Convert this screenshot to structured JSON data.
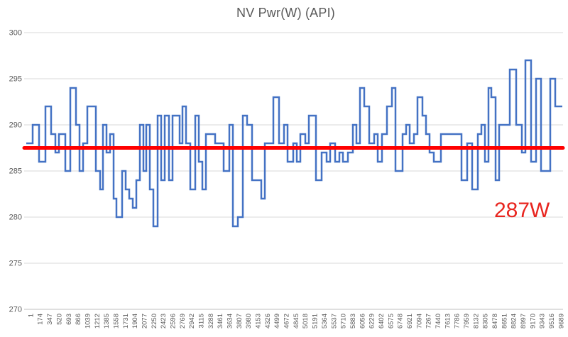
{
  "title": "NV Pwr(W) (API)",
  "annotation": {
    "label": "287W",
    "color": "#E8251F"
  },
  "colors": {
    "series_blue": "#4472C4",
    "average_red": "#FF0000",
    "grid": "#D9D9D9",
    "axis": "#BFBFBF",
    "text": "#595959"
  },
  "chart_data": {
    "type": "line",
    "title": "NV Pwr(W) (API)",
    "xlabel": "",
    "ylabel": "",
    "ylim": [
      270,
      300
    ],
    "y_ticks": [
      300,
      295,
      290,
      285,
      280,
      275,
      270
    ],
    "grid": "horizontal",
    "legend": "none",
    "x_tick_labels": [
      "1",
      "174",
      "347",
      "520",
      "693",
      "866",
      "1039",
      "1212",
      "1385",
      "1558",
      "1731",
      "1904",
      "2077",
      "2250",
      "2423",
      "2596",
      "2769",
      "2942",
      "3115",
      "3288",
      "3461",
      "3634",
      "3807",
      "3980",
      "4153",
      "4326",
      "4499",
      "4672",
      "4845",
      "5018",
      "5191",
      "5364",
      "5537",
      "5710",
      "5883",
      "6056",
      "6229",
      "6402",
      "6575",
      "6748",
      "6921",
      "7094",
      "7267",
      "7440",
      "7613",
      "7786",
      "7959",
      "8132",
      "8305",
      "8478",
      "8651",
      "8824",
      "8997",
      "9170",
      "9343",
      "9516",
      "9689"
    ],
    "series": [
      {
        "name": "NV Pwr(W) (API)",
        "color": "#4472C4",
        "style": "step",
        "note": "segments are [watts, relative_duration] pairs, values estimated from gridlines",
        "segments": [
          [
            288,
            9
          ],
          [
            290,
            9
          ],
          [
            286,
            9
          ],
          [
            292,
            8
          ],
          [
            289,
            6
          ],
          [
            287,
            5
          ],
          [
            289,
            9
          ],
          [
            285,
            7
          ],
          [
            294,
            8
          ],
          [
            290,
            5
          ],
          [
            285,
            5
          ],
          [
            288,
            6
          ],
          [
            292,
            12
          ],
          [
            285,
            6
          ],
          [
            283,
            4
          ],
          [
            290,
            5
          ],
          [
            287,
            5
          ],
          [
            289,
            5
          ],
          [
            282,
            4
          ],
          [
            280,
            8
          ],
          [
            285,
            5
          ],
          [
            283,
            5
          ],
          [
            282,
            5
          ],
          [
            281,
            5
          ],
          [
            284,
            5
          ],
          [
            290,
            5
          ],
          [
            285,
            4
          ],
          [
            290,
            5
          ],
          [
            283,
            5
          ],
          [
            279,
            6
          ],
          [
            291,
            5
          ],
          [
            284,
            5
          ],
          [
            291,
            6
          ],
          [
            284,
            5
          ],
          [
            291,
            10
          ],
          [
            288,
            4
          ],
          [
            292,
            5
          ],
          [
            288,
            6
          ],
          [
            283,
            7
          ],
          [
            291,
            5
          ],
          [
            286,
            5
          ],
          [
            283,
            5
          ],
          [
            289,
            13
          ],
          [
            288,
            12
          ],
          [
            285,
            8
          ],
          [
            290,
            5
          ],
          [
            279,
            7
          ],
          [
            280,
            7
          ],
          [
            291,
            6
          ],
          [
            290,
            7
          ],
          [
            284,
            13
          ],
          [
            282,
            5
          ],
          [
            288,
            12
          ],
          [
            293,
            8
          ],
          [
            288,
            7
          ],
          [
            290,
            5
          ],
          [
            286,
            8
          ],
          [
            288,
            5
          ],
          [
            286,
            5
          ],
          [
            289,
            7
          ],
          [
            288,
            5
          ],
          [
            291,
            10
          ],
          [
            284,
            8
          ],
          [
            287,
            7
          ],
          [
            286,
            5
          ],
          [
            288,
            7
          ],
          [
            286,
            6
          ],
          [
            287,
            5
          ],
          [
            286,
            7
          ],
          [
            287,
            7
          ],
          [
            290,
            5
          ],
          [
            288,
            5
          ],
          [
            294,
            6
          ],
          [
            292,
            7
          ],
          [
            288,
            7
          ],
          [
            289,
            5
          ],
          [
            286,
            6
          ],
          [
            289,
            7
          ],
          [
            292,
            7
          ],
          [
            294,
            5
          ],
          [
            285,
            10
          ],
          [
            289,
            5
          ],
          [
            290,
            5
          ],
          [
            288,
            6
          ],
          [
            289,
            5
          ],
          [
            293,
            7
          ],
          [
            291,
            5
          ],
          [
            289,
            5
          ],
          [
            287,
            6
          ],
          [
            286,
            10
          ],
          [
            289,
            29
          ],
          [
            284,
            8
          ],
          [
            288,
            7
          ],
          [
            283,
            8
          ],
          [
            289,
            5
          ],
          [
            290,
            5
          ],
          [
            286,
            5
          ],
          [
            294,
            4
          ],
          [
            293,
            6
          ],
          [
            284,
            5
          ],
          [
            290,
            15
          ],
          [
            296,
            9
          ],
          [
            290,
            8
          ],
          [
            287,
            5
          ],
          [
            297,
            8
          ],
          [
            286,
            7
          ],
          [
            295,
            7
          ],
          [
            285,
            13
          ],
          [
            295,
            7
          ],
          [
            292,
            10
          ]
        ]
      }
    ],
    "average_line": {
      "value": 287.5,
      "label": "287W",
      "color": "#FF0000"
    }
  }
}
